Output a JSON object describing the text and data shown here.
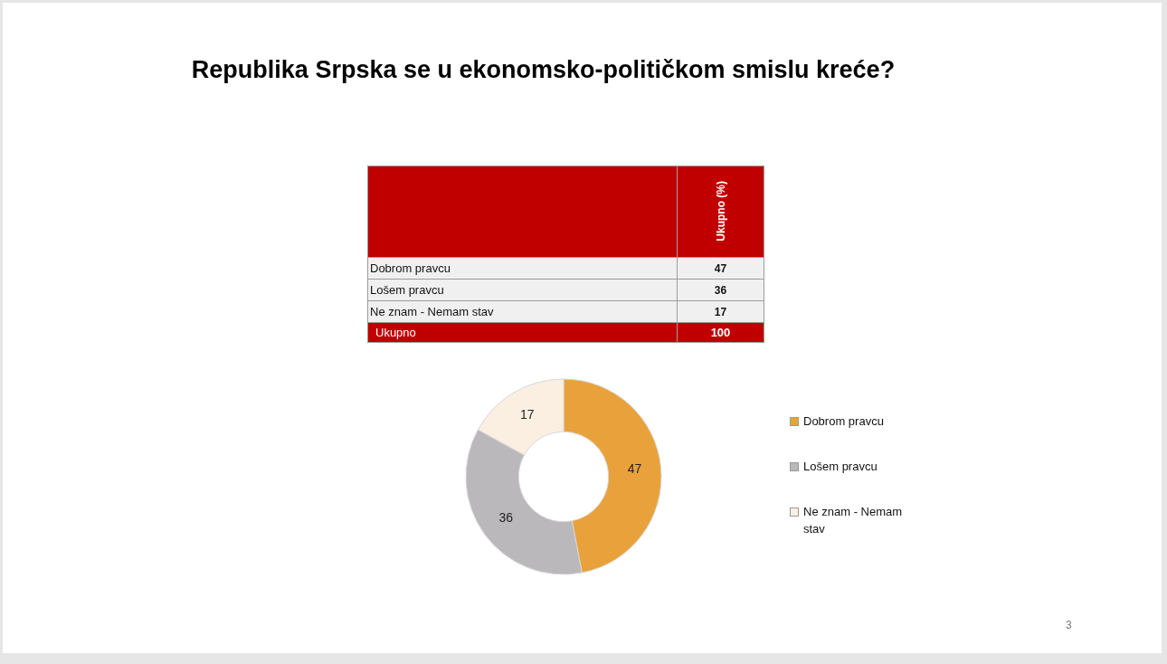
{
  "chart_data": [
    {
      "type": "other",
      "title": "Republika Srpska se u ekonomsko-političkom smislu kreće?",
      "categories": [
        "Dobrom pravcu",
        "Lošem pravcu",
        "Ne znam - Nemam stav"
      ],
      "values": [
        47,
        36,
        17
      ],
      "data_labels": true,
      "annotations": [
        "Ukupno (%)",
        "Ukupno",
        "100"
      ]
    },
    {
      "type": "donut",
      "categories": [
        "Dobrom pravcu",
        "Lošem pravcu",
        "Ne znam - Nemam stav"
      ],
      "values": [
        47,
        36,
        17
      ],
      "colors": [
        "#e9a23b",
        "#bab8ba",
        "#fbefe2"
      ],
      "data_labels": true,
      "legend": "right",
      "annotations": [
        "3"
      ]
    }
  ]
}
